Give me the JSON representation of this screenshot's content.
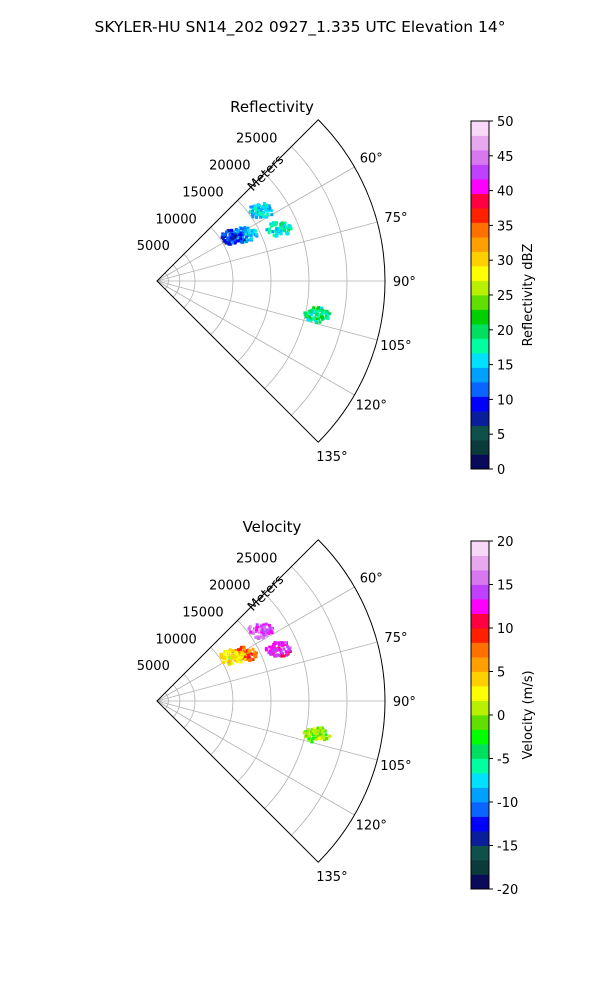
{
  "figure_title": "SKYLER-HU  SN14_202  0927_1.335 UTC Elevation 14°",
  "chart_data": [
    {
      "type": "polar-sector-scatter",
      "title": "Reflectivity",
      "radial_label": "Meters",
      "radial_ticks": [
        5000,
        10000,
        15000,
        20000,
        25000
      ],
      "radial_tick_labels": [
        "5000",
        "10000",
        "15000",
        "20000",
        "25000"
      ],
      "r_max": 30000,
      "azimuth_range_deg": [
        45,
        135
      ],
      "azimuth_ticks_deg": [
        60,
        75,
        90,
        105,
        120,
        135
      ],
      "azimuth_tick_labels": [
        "60°",
        "75°",
        "90°",
        "105°",
        "120°",
        "135°"
      ],
      "grid": true,
      "colorbar": {
        "label": "Reflectivity dBZ",
        "min": 0,
        "max": 50,
        "ticks": [
          0,
          5,
          10,
          15,
          20,
          25,
          30,
          35,
          40,
          45,
          50
        ],
        "tick_labels": [
          "0",
          "5",
          "10",
          "15",
          "20",
          "25",
          "30",
          "35",
          "40",
          "45",
          "50"
        ]
      },
      "clusters": [
        {
          "azimuth_deg": 56,
          "range_m": 16500,
          "value": 15
        },
        {
          "azimuth_deg": 67,
          "range_m": 17500,
          "value": 17
        },
        {
          "azimuth_deg": 62,
          "range_m": 13000,
          "value": 14
        },
        {
          "azimuth_deg": 60,
          "range_m": 11500,
          "value": 10
        },
        {
          "azimuth_deg": 102,
          "range_m": 21500,
          "value": 19
        }
      ]
    },
    {
      "type": "polar-sector-scatter",
      "title": "Velocity",
      "radial_label": "Meters",
      "radial_ticks": [
        5000,
        10000,
        15000,
        20000,
        25000
      ],
      "radial_tick_labels": [
        "5000",
        "10000",
        "15000",
        "20000",
        "25000"
      ],
      "r_max": 30000,
      "azimuth_range_deg": [
        45,
        135
      ],
      "azimuth_ticks_deg": [
        60,
        75,
        90,
        105,
        120,
        135
      ],
      "azimuth_tick_labels": [
        "60°",
        "75°",
        "90°",
        "105°",
        "120°",
        "135°"
      ],
      "grid": true,
      "colorbar": {
        "label": "Velocity (m/s)",
        "min": -20,
        "max": 20,
        "ticks": [
          -20,
          -15,
          -10,
          -5,
          0,
          5,
          10,
          15,
          20
        ],
        "tick_labels": [
          "-20",
          "-15",
          "-10",
          "-5",
          "0",
          "5",
          "10",
          "15",
          "20"
        ]
      },
      "clusters": [
        {
          "azimuth_deg": 56,
          "range_m": 16500,
          "value": 15
        },
        {
          "azimuth_deg": 67,
          "range_m": 17500,
          "value": 13
        },
        {
          "azimuth_deg": 62,
          "range_m": 13000,
          "value": 8
        },
        {
          "azimuth_deg": 60,
          "range_m": 11500,
          "value": 3
        },
        {
          "azimuth_deg": 102,
          "range_m": 21500,
          "value": 0
        }
      ]
    }
  ],
  "colors": {
    "reflectivity_scale": [
      "#0a0a5a",
      "#0b3a3a",
      "#10504a",
      "#0a1e9c",
      "#0000ff",
      "#0a64ff",
      "#00a0ff",
      "#00e0ff",
      "#00ffa0",
      "#00e060",
      "#00d000",
      "#60e000",
      "#b8f000",
      "#ffff00",
      "#ffd000",
      "#ffa000",
      "#ff7000",
      "#ff2000",
      "#ff0040",
      "#ff00ff",
      "#c040ff",
      "#d878f0",
      "#e8a8f0",
      "#f8d8f8"
    ],
    "velocity_scale": [
      "#0a0a5a",
      "#0b3a3a",
      "#10504a",
      "#0a1e9c",
      "#0000ff",
      "#0a64ff",
      "#00a0ff",
      "#00e0ff",
      "#00ffa0",
      "#00e060",
      "#00ff00",
      "#60e000",
      "#b8f000",
      "#ffff00",
      "#ffd000",
      "#ffa000",
      "#ff7000",
      "#ff2000",
      "#ff0040",
      "#ff00ff",
      "#c040ff",
      "#d878f0",
      "#e8a8f0",
      "#f8d8f8"
    ]
  }
}
